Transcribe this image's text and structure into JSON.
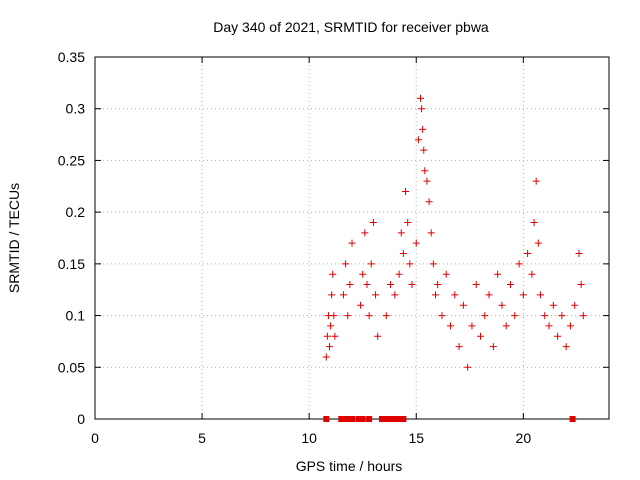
{
  "chart_data": {
    "type": "scatter",
    "title": "Day 340 of 2021, SRMTID for receiver pbwa",
    "xlabel": "GPS time / hours",
    "ylabel": "SRMTID / TECUs",
    "xlim": [
      0,
      24
    ],
    "ylim": [
      0,
      0.35
    ],
    "x_ticks": [
      "0",
      "5",
      "10",
      "15",
      "20"
    ],
    "y_ticks": [
      "0",
      "0.05",
      "0.1",
      "0.15",
      "0.2",
      "0.25",
      "0.3",
      "0.35"
    ],
    "x_tick_values": [
      0,
      5,
      10,
      15,
      20
    ],
    "y_tick_values": [
      0,
      0.05,
      0.1,
      0.15,
      0.2,
      0.25,
      0.3,
      0.35
    ],
    "grid": true,
    "marker": "+",
    "color": "#e00000",
    "series": [
      {
        "name": "SRMTID",
        "points": [
          [
            10.8,
            0.06
          ],
          [
            10.85,
            0.08
          ],
          [
            10.9,
            0.1
          ],
          [
            10.95,
            0.07
          ],
          [
            11.0,
            0.09
          ],
          [
            11.05,
            0.12
          ],
          [
            11.1,
            0.14
          ],
          [
            11.15,
            0.1
          ],
          [
            11.2,
            0.08
          ],
          [
            11.6,
            0.12
          ],
          [
            11.7,
            0.15
          ],
          [
            11.8,
            0.1
          ],
          [
            11.9,
            0.13
          ],
          [
            12.0,
            0.17
          ],
          [
            12.4,
            0.11
          ],
          [
            12.5,
            0.14
          ],
          [
            12.6,
            0.18
          ],
          [
            12.7,
            0.13
          ],
          [
            12.8,
            0.1
          ],
          [
            12.9,
            0.15
          ],
          [
            13.0,
            0.19
          ],
          [
            13.1,
            0.12
          ],
          [
            13.2,
            0.08
          ],
          [
            13.6,
            0.1
          ],
          [
            13.8,
            0.13
          ],
          [
            14.0,
            0.12
          ],
          [
            14.2,
            0.14
          ],
          [
            14.3,
            0.18
          ],
          [
            14.4,
            0.16
          ],
          [
            14.5,
            0.22
          ],
          [
            14.6,
            0.19
          ],
          [
            14.7,
            0.15
          ],
          [
            14.8,
            0.13
          ],
          [
            15.0,
            0.17
          ],
          [
            15.1,
            0.27
          ],
          [
            15.2,
            0.31
          ],
          [
            15.25,
            0.3
          ],
          [
            15.3,
            0.28
          ],
          [
            15.35,
            0.26
          ],
          [
            15.4,
            0.24
          ],
          [
            15.5,
            0.23
          ],
          [
            15.6,
            0.21
          ],
          [
            15.7,
            0.18
          ],
          [
            15.8,
            0.15
          ],
          [
            15.9,
            0.12
          ],
          [
            16.0,
            0.13
          ],
          [
            16.2,
            0.1
          ],
          [
            16.4,
            0.14
          ],
          [
            16.6,
            0.09
          ],
          [
            16.8,
            0.12
          ],
          [
            17.0,
            0.07
          ],
          [
            17.2,
            0.11
          ],
          [
            17.4,
            0.05
          ],
          [
            17.6,
            0.09
          ],
          [
            17.8,
            0.13
          ],
          [
            18.0,
            0.08
          ],
          [
            18.2,
            0.1
          ],
          [
            18.4,
            0.12
          ],
          [
            18.6,
            0.07
          ],
          [
            18.8,
            0.14
          ],
          [
            19.0,
            0.11
          ],
          [
            19.2,
            0.09
          ],
          [
            19.4,
            0.13
          ],
          [
            19.6,
            0.1
          ],
          [
            19.8,
            0.15
          ],
          [
            20.0,
            0.12
          ],
          [
            20.2,
            0.16
          ],
          [
            20.4,
            0.14
          ],
          [
            20.5,
            0.19
          ],
          [
            20.6,
            0.23
          ],
          [
            20.7,
            0.17
          ],
          [
            20.8,
            0.12
          ],
          [
            21.0,
            0.1
          ],
          [
            21.2,
            0.09
          ],
          [
            21.4,
            0.11
          ],
          [
            21.6,
            0.08
          ],
          [
            21.8,
            0.1
          ],
          [
            22.0,
            0.07
          ],
          [
            22.2,
            0.09
          ],
          [
            22.4,
            0.11
          ],
          [
            22.6,
            0.16
          ],
          [
            22.7,
            0.13
          ],
          [
            22.8,
            0.1
          ]
        ],
        "zero_points": [
          10.8,
          11.5,
          11.6,
          11.7,
          11.8,
          11.9,
          12.0,
          12.3,
          12.5,
          12.8,
          13.4,
          13.6,
          13.8,
          13.9,
          14.0,
          14.1,
          14.2,
          14.4,
          22.3
        ]
      }
    ]
  }
}
